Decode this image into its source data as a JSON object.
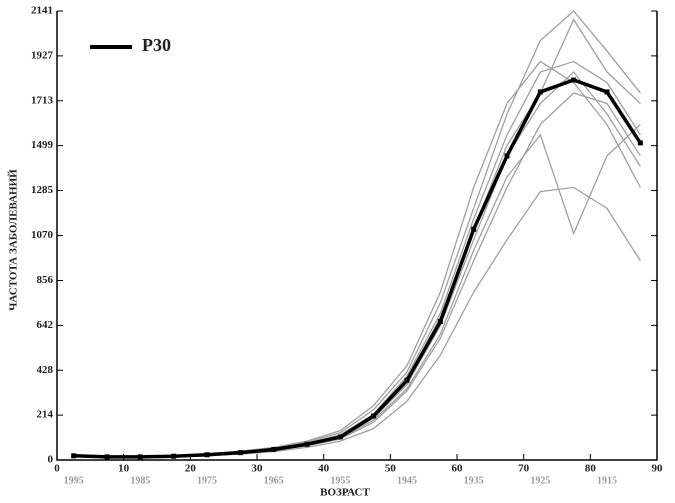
{
  "chart_data": {
    "type": "line",
    "x_label": "ВОЗРАСТ",
    "y_label": "ЧАСТОТА ЗАБОЛЕВАНИЙ",
    "x": [
      2.5,
      7.5,
      12.5,
      17.5,
      22.5,
      27.5,
      32.5,
      37.5,
      42.5,
      47.5,
      52.5,
      57.5,
      62.5,
      67.5,
      72.5,
      77.5,
      82.5,
      87.5
    ],
    "series": [
      {
        "color": "#a0a0a0",
        "values": [
          25,
          18,
          16,
          20,
          28,
          40,
          58,
          85,
          130,
          240,
          420,
          750,
          1200,
          1650,
          2000,
          2141,
          1950,
          1750
        ]
      },
      {
        "color": "#a0a0a0",
        "values": [
          18,
          14,
          13,
          16,
          22,
          30,
          44,
          68,
          100,
          180,
          330,
          580,
          950,
          1300,
          1600,
          1750,
          1700,
          1450
        ]
      },
      {
        "color": "#a0a0a0",
        "values": [
          22,
          16,
          15,
          19,
          26,
          36,
          52,
          80,
          120,
          220,
          400,
          700,
          1150,
          1550,
          1850,
          1900,
          1800,
          1550
        ]
      },
      {
        "color": "#a0a0a0",
        "values": [
          15,
          12,
          12,
          15,
          20,
          28,
          40,
          60,
          90,
          150,
          280,
          500,
          800,
          1050,
          1280,
          1300,
          1200,
          950
        ]
      },
      {
        "color": "#a0a0a0",
        "values": [
          20,
          15,
          14,
          18,
          24,
          34,
          48,
          72,
          110,
          200,
          360,
          640,
          1050,
          1450,
          1700,
          1850,
          1650,
          1400
        ]
      },
      {
        "color": "#a0a0a0",
        "values": [
          24,
          17,
          16,
          21,
          29,
          42,
          60,
          90,
          140,
          260,
          450,
          800,
          1300,
          1700,
          1900,
          1800,
          1600,
          1300
        ]
      },
      {
        "color": "#a0a0a0",
        "values": [
          19,
          14,
          13,
          17,
          23,
          32,
          46,
          70,
          105,
          190,
          340,
          600,
          1000,
          1350,
          1550,
          1080,
          1450,
          1600
        ]
      },
      {
        "color": "#a0a0a0",
        "values": [
          21,
          16,
          15,
          18,
          25,
          35,
          50,
          76,
          115,
          210,
          380,
          680,
          1100,
          1500,
          1750,
          2100,
          1850,
          1700
        ]
      },
      {
        "name": "P30",
        "color": "#000000",
        "values": [
          20,
          15,
          15,
          18,
          25,
          35,
          50,
          75,
          110,
          210,
          380,
          660,
          1100,
          1450,
          1755,
          1812,
          1755,
          1512
        ]
      }
    ],
    "xlim": [
      0,
      90
    ],
    "xticks": [
      0,
      10,
      20,
      30,
      40,
      50,
      60,
      70,
      80,
      90
    ],
    "ylim": [
      0,
      2141
    ],
    "yticks": [
      0,
      214,
      428,
      642,
      856,
      1070,
      1285,
      1499,
      1713,
      1927,
      2141
    ],
    "cohort_ticks": [
      {
        "value": 2.5,
        "label": "1995"
      },
      {
        "value": 12.5,
        "label": "1985"
      },
      {
        "value": 22.5,
        "label": "1975"
      },
      {
        "value": 32.5,
        "label": "1965"
      },
      {
        "value": 42.5,
        "label": "1955"
      },
      {
        "value": 52.5,
        "label": "1945"
      },
      {
        "value": 62.5,
        "label": "1935"
      },
      {
        "value": 72.5,
        "label": "1925"
      },
      {
        "value": 82.5,
        "label": "1915"
      }
    ],
    "legend": "upper left"
  }
}
